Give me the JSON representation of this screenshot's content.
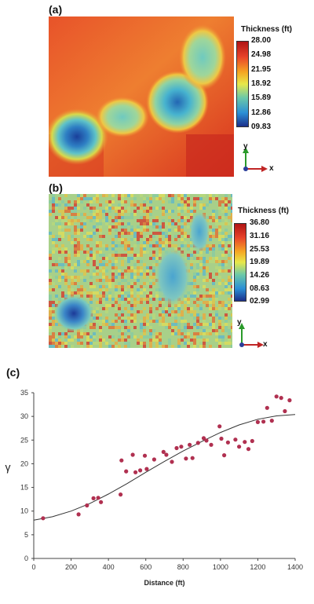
{
  "panels": [
    {
      "label": "(a)",
      "legend_title": "Thickness (ft)",
      "ticks": [
        "28.00",
        "24.98",
        "21.95",
        "18.92",
        "15.89",
        "12.86",
        "09.83"
      ],
      "axis_y": "y",
      "axis_x": "x"
    },
    {
      "label": "(b)",
      "legend_title": "Thickness (ft)",
      "ticks": [
        "36.80",
        "31.16",
        "25.53",
        "19.89",
        "14.26",
        "08.63",
        "02.99"
      ],
      "axis_y": "y",
      "axis_x": "x"
    }
  ],
  "colors": {
    "map_background": "#e8532a",
    "map_high": "#d62a22",
    "map_mid": "#f2a53a",
    "map_low": "#3fa7c9",
    "map_min": "#1a3f9a",
    "point": "#b03050",
    "curve": "#333333",
    "colorbar": [
      "#b01515",
      "#e8432a",
      "#f5a623",
      "#e8e84a",
      "#6cc9a8",
      "#2b8fd6",
      "#1c2f8a"
    ]
  },
  "chart_data": {
    "type": "scatter",
    "panel_label": "(c)",
    "title": "",
    "xlabel": "Distance (ft)",
    "ylabel": "γ",
    "xlim": [
      0,
      1400
    ],
    "ylim": [
      0,
      35
    ],
    "xticks": [
      "0",
      "200",
      "400",
      "600",
      "800",
      "1000",
      "1200",
      "1400"
    ],
    "yticks": [
      "0",
      "5",
      "10",
      "15",
      "20",
      "25",
      "30",
      "35"
    ],
    "grid": false,
    "points": {
      "x": [
        50,
        240,
        285,
        320,
        345,
        360,
        465,
        470,
        495,
        530,
        545,
        570,
        595,
        605,
        645,
        695,
        710,
        740,
        765,
        790,
        815,
        835,
        850,
        880,
        910,
        925,
        950,
        995,
        1005,
        1020,
        1040,
        1080,
        1100,
        1130,
        1150,
        1170,
        1200,
        1230,
        1250,
        1275,
        1300,
        1325,
        1345,
        1370
      ],
      "y": [
        8.5,
        9.3,
        11.2,
        12.7,
        12.8,
        11.9,
        13.5,
        20.7,
        18.4,
        21.9,
        18.2,
        18.6,
        21.7,
        18.9,
        20.9,
        22.5,
        21.9,
        20.4,
        23.3,
        23.6,
        21.1,
        24.0,
        21.2,
        24.4,
        25.4,
        24.9,
        24.0,
        27.9,
        25.3,
        21.8,
        24.5,
        25.1,
        23.6,
        24.6,
        23.1,
        24.8,
        28.8,
        28.9,
        31.8,
        29.1,
        34.2,
        33.9,
        31.1,
        33.4
      ]
    },
    "fit_curve": {
      "name": "",
      "x": [
        0,
        100,
        200,
        300,
        400,
        500,
        600,
        700,
        800,
        900,
        1000,
        1100,
        1200,
        1300,
        1400
      ],
      "y": [
        8.1,
        8.8,
        10.0,
        11.6,
        13.6,
        15.8,
        18.2,
        20.5,
        22.7,
        24.7,
        26.6,
        28.2,
        29.4,
        30.1,
        30.4
      ]
    }
  }
}
